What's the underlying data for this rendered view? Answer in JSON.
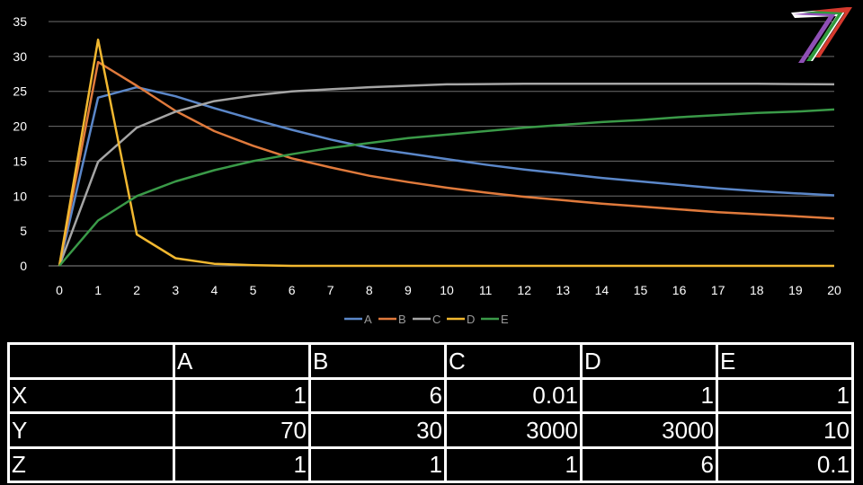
{
  "chart_data": {
    "type": "line",
    "title": "",
    "xlabel": "",
    "ylabel": "",
    "xlim": [
      0,
      20
    ],
    "ylim": [
      0,
      35
    ],
    "x_ticks": [
      "0",
      "1",
      "2",
      "3",
      "4",
      "5",
      "6",
      "7",
      "8",
      "9",
      "10",
      "11",
      "12",
      "13",
      "14",
      "15",
      "16",
      "17",
      "18",
      "19",
      "20"
    ],
    "y_ticks": [
      "0",
      "5",
      "10",
      "15",
      "20",
      "25",
      "30",
      "35"
    ],
    "grid": "horizontal",
    "legend_position": "bottom",
    "x": [
      0,
      1,
      2,
      3,
      4,
      5,
      6,
      7,
      8,
      9,
      10,
      11,
      12,
      13,
      14,
      15,
      16,
      17,
      18,
      19,
      20
    ],
    "series": [
      {
        "name": "A",
        "color": "#5b87c9",
        "values": [
          0,
          24.1,
          25.6,
          24.3,
          22.6,
          21.0,
          19.5,
          18.1,
          16.9,
          16.1,
          15.3,
          14.5,
          13.8,
          13.2,
          12.6,
          12.1,
          11.6,
          11.1,
          10.7,
          10.4,
          10.1
        ]
      },
      {
        "name": "B",
        "color": "#e07a3c",
        "values": [
          0,
          29.2,
          25.8,
          22.2,
          19.3,
          17.2,
          15.4,
          14.1,
          12.9,
          12.0,
          11.2,
          10.5,
          9.9,
          9.4,
          8.9,
          8.5,
          8.1,
          7.7,
          7.4,
          7.1,
          6.8
        ]
      },
      {
        "name": "C",
        "color": "#a5a5a5",
        "values": [
          0,
          14.9,
          19.8,
          22.1,
          23.6,
          24.4,
          25.0,
          25.3,
          25.6,
          25.8,
          26.0,
          26.05,
          26.1,
          26.1,
          26.1,
          26.1,
          26.1,
          26.1,
          26.1,
          26.05,
          26.0
        ]
      },
      {
        "name": "D",
        "color": "#f2b830",
        "values": [
          0,
          32.4,
          4.5,
          1.1,
          0.3,
          0.1,
          0.0,
          0.0,
          0.0,
          0.0,
          0.0,
          0.0,
          0.0,
          0.0,
          0.0,
          0.0,
          0.0,
          0.0,
          0.0,
          0.0,
          0.0
        ]
      },
      {
        "name": "E",
        "color": "#3a9a48",
        "values": [
          0,
          6.5,
          10.0,
          12.1,
          13.7,
          15.0,
          16.0,
          16.9,
          17.6,
          18.3,
          18.8,
          19.3,
          19.8,
          20.2,
          20.6,
          20.9,
          21.3,
          21.6,
          21.9,
          22.1,
          22.4
        ]
      }
    ]
  },
  "table": {
    "header": [
      "",
      "A",
      "B",
      "C",
      "D",
      "E"
    ],
    "rows": [
      {
        "label": "X",
        "values": [
          "1",
          "6",
          "0.01",
          "1",
          "1"
        ]
      },
      {
        "label": "Y",
        "values": [
          "70",
          "30",
          "3000",
          "3000",
          "10"
        ]
      },
      {
        "label": "Z",
        "values": [
          "1",
          "1",
          "1",
          "6",
          "0.1"
        ]
      }
    ]
  },
  "logo": {
    "icon": "seven-logo-icon",
    "colors": [
      "#8e4fb5",
      "#2f9a3e",
      "#d63a2e",
      "#ffffff"
    ]
  }
}
